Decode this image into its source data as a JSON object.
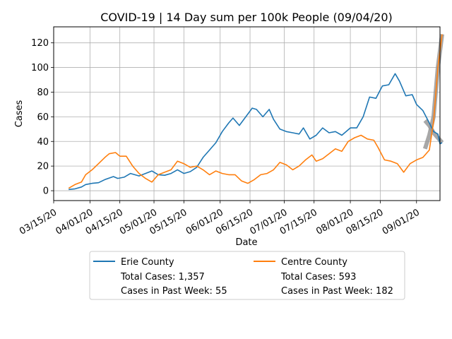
{
  "chart_data": {
    "type": "line",
    "title": "COVID-19 | 14 Day sum per 100k People (09/04/20)",
    "xlabel": "Date",
    "ylabel": "Cases",
    "xlim": [
      "2020-03-15",
      "2020-09-12"
    ],
    "ylim": [
      -8,
      133
    ],
    "grid": true,
    "x_ticks": [
      "03/15/20",
      "04/01/20",
      "04/15/20",
      "05/01/20",
      "05/15/20",
      "06/01/20",
      "06/15/20",
      "07/01/20",
      "07/15/20",
      "08/01/20",
      "08/15/20",
      "09/01/20"
    ],
    "y_ticks": [
      0,
      20,
      40,
      60,
      80,
      100,
      120
    ],
    "legend": {
      "placement": "below-center",
      "ncol": 2,
      "columns": [
        {
          "name": "Erie County",
          "lines": [
            "Total Cases: 1,357",
            "Cases in Past Week: 55"
          ]
        },
        {
          "name": "Centre County",
          "lines": [
            "Total Cases: 593",
            "Cases in Past Week: 182"
          ]
        }
      ]
    },
    "series": [
      {
        "name": "Erie County",
        "color": "#1f77b4",
        "points": [
          [
            "2020-03-22",
            1
          ],
          [
            "2020-03-25",
            1.5
          ],
          [
            "2020-03-28",
            3
          ],
          [
            "2020-03-30",
            5
          ],
          [
            "2020-04-02",
            6
          ],
          [
            "2020-04-05",
            6.5
          ],
          [
            "2020-04-08",
            9
          ],
          [
            "2020-04-12",
            11.5
          ],
          [
            "2020-04-14",
            10
          ],
          [
            "2020-04-17",
            11
          ],
          [
            "2020-04-20",
            14
          ],
          [
            "2020-04-24",
            12
          ],
          [
            "2020-04-27",
            14
          ],
          [
            "2020-04-30",
            16
          ],
          [
            "2020-05-03",
            13
          ],
          [
            "2020-05-06",
            12.5
          ],
          [
            "2020-05-09",
            14
          ],
          [
            "2020-05-12",
            17
          ],
          [
            "2020-05-15",
            14
          ],
          [
            "2020-05-18",
            15.5
          ],
          [
            "2020-05-21",
            19
          ],
          [
            "2020-05-24",
            27
          ],
          [
            "2020-05-27",
            33
          ],
          [
            "2020-05-30",
            39
          ],
          [
            "2020-06-02",
            48
          ],
          [
            "2020-06-05",
            55
          ],
          [
            "2020-06-07",
            59
          ],
          [
            "2020-06-10",
            53
          ],
          [
            "2020-06-13",
            60
          ],
          [
            "2020-06-16",
            67
          ],
          [
            "2020-06-18",
            66
          ],
          [
            "2020-06-21",
            60
          ],
          [
            "2020-06-24",
            66
          ],
          [
            "2020-06-26",
            58
          ],
          [
            "2020-06-29",
            50
          ],
          [
            "2020-07-02",
            48
          ],
          [
            "2020-07-05",
            47
          ],
          [
            "2020-07-08",
            46
          ],
          [
            "2020-07-10",
            51
          ],
          [
            "2020-07-13",
            42
          ],
          [
            "2020-07-16",
            45
          ],
          [
            "2020-07-19",
            51
          ],
          [
            "2020-07-22",
            47
          ],
          [
            "2020-07-25",
            48
          ],
          [
            "2020-07-28",
            45
          ],
          [
            "2020-08-01",
            51
          ],
          [
            "2020-08-04",
            51
          ],
          [
            "2020-08-07",
            60
          ],
          [
            "2020-08-10",
            76
          ],
          [
            "2020-08-13",
            75
          ],
          [
            "2020-08-16",
            85
          ],
          [
            "2020-08-19",
            86
          ],
          [
            "2020-08-22",
            95
          ],
          [
            "2020-08-24",
            89
          ],
          [
            "2020-08-27",
            77
          ],
          [
            "2020-08-30",
            78
          ],
          [
            "2020-09-01",
            70
          ],
          [
            "2020-09-04",
            65
          ],
          [
            "2020-09-07",
            55
          ],
          [
            "2020-09-09",
            48
          ],
          [
            "2020-09-11",
            46
          ],
          [
            "2020-09-12",
            38
          ],
          [
            "2020-09-13",
            39
          ]
        ]
      },
      {
        "name": "Centre County",
        "color": "#ff7f0e",
        "points": [
          [
            "2020-03-22",
            2
          ],
          [
            "2020-03-25",
            5
          ],
          [
            "2020-03-28",
            7
          ],
          [
            "2020-03-30",
            13
          ],
          [
            "2020-04-02",
            17
          ],
          [
            "2020-04-05",
            22
          ],
          [
            "2020-04-08",
            27
          ],
          [
            "2020-04-10",
            30
          ],
          [
            "2020-04-13",
            31
          ],
          [
            "2020-04-15",
            28
          ],
          [
            "2020-04-18",
            28
          ],
          [
            "2020-04-21",
            20
          ],
          [
            "2020-04-24",
            14
          ],
          [
            "2020-04-27",
            10
          ],
          [
            "2020-04-30",
            7
          ],
          [
            "2020-05-03",
            13
          ],
          [
            "2020-05-06",
            15
          ],
          [
            "2020-05-09",
            17
          ],
          [
            "2020-05-12",
            24
          ],
          [
            "2020-05-15",
            22
          ],
          [
            "2020-05-18",
            19
          ],
          [
            "2020-05-21",
            20
          ],
          [
            "2020-05-24",
            17
          ],
          [
            "2020-05-27",
            13
          ],
          [
            "2020-05-30",
            16
          ],
          [
            "2020-06-02",
            14
          ],
          [
            "2020-06-05",
            13
          ],
          [
            "2020-06-08",
            13
          ],
          [
            "2020-06-11",
            8
          ],
          [
            "2020-06-14",
            6
          ],
          [
            "2020-06-17",
            9
          ],
          [
            "2020-06-20",
            13
          ],
          [
            "2020-06-23",
            14
          ],
          [
            "2020-06-26",
            17
          ],
          [
            "2020-06-29",
            23
          ],
          [
            "2020-07-02",
            21
          ],
          [
            "2020-07-05",
            17
          ],
          [
            "2020-07-08",
            20
          ],
          [
            "2020-07-11",
            25
          ],
          [
            "2020-07-14",
            29
          ],
          [
            "2020-07-16",
            24
          ],
          [
            "2020-07-19",
            26
          ],
          [
            "2020-07-22",
            30
          ],
          [
            "2020-07-25",
            34
          ],
          [
            "2020-07-28",
            32
          ],
          [
            "2020-07-31",
            40
          ],
          [
            "2020-08-03",
            43
          ],
          [
            "2020-08-06",
            45
          ],
          [
            "2020-08-09",
            42
          ],
          [
            "2020-08-12",
            41
          ],
          [
            "2020-08-14",
            35
          ],
          [
            "2020-08-17",
            25
          ],
          [
            "2020-08-20",
            24
          ],
          [
            "2020-08-23",
            22
          ],
          [
            "2020-08-26",
            15
          ],
          [
            "2020-08-29",
            22
          ],
          [
            "2020-09-01",
            25
          ],
          [
            "2020-09-04",
            27
          ],
          [
            "2020-09-07",
            33
          ],
          [
            "2020-09-09",
            56
          ],
          [
            "2020-09-11",
            100
          ],
          [
            "2020-09-13",
            127
          ]
        ]
      }
    ],
    "projections": [
      {
        "series": "Erie County",
        "color": "#999999",
        "points": [
          [
            "2020-09-05",
            57
          ],
          [
            "2020-09-07",
            53
          ],
          [
            "2020-09-09",
            47
          ],
          [
            "2020-09-11",
            43
          ],
          [
            "2020-09-13",
            39
          ]
        ]
      },
      {
        "series": "Centre County",
        "color": "#999999",
        "points": [
          [
            "2020-09-05",
            34
          ],
          [
            "2020-09-07",
            45
          ],
          [
            "2020-09-09",
            60
          ],
          [
            "2020-09-11",
            100
          ],
          [
            "2020-09-13",
            127
          ]
        ]
      }
    ]
  }
}
